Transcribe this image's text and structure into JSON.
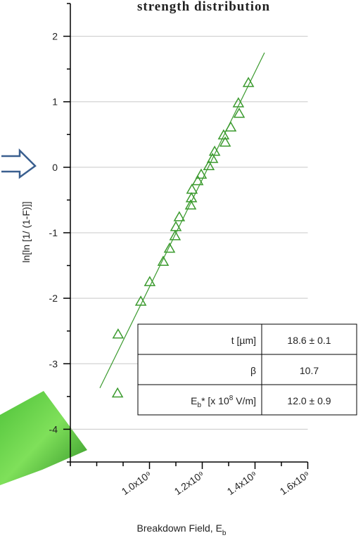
{
  "chart_data": {
    "type": "scatter",
    "title": "strength distribution",
    "x_label": "Breakdown Field, E",
    "x_label_sub": "b",
    "y_label": "ln[ln [1/ (1-F)]]",
    "xlim": [
      700000000,
      1600000000
    ],
    "ylim": [
      -4.5,
      2.5
    ],
    "xticks": [
      {
        "value": 1000000000,
        "label": "1.0x10⁹"
      },
      {
        "value": 1200000000,
        "label": "1.2x10⁹"
      },
      {
        "value": 1400000000,
        "label": "1.4x10⁹"
      },
      {
        "value": 1600000000,
        "label": "1.6x10⁹"
      }
    ],
    "x_minor_ticks": [
      700000000,
      800000000,
      900000000,
      1100000000,
      1300000000,
      1500000000
    ],
    "yticks": [
      -4,
      -3,
      -2,
      -1,
      0,
      1,
      2
    ],
    "y_minor_ticks": [
      -4.5,
      -3.5,
      -2.5,
      -1.5,
      -0.5,
      0.5,
      1.5,
      2.5
    ],
    "grid": true,
    "color": "#3b9a2e",
    "x": [
      881000000,
      879000000,
      967000000,
      1001000000,
      1052000000,
      1076000000,
      1097000000,
      1100000000,
      1113000000,
      1156000000,
      1159000000,
      1161000000,
      1183000000,
      1196000000,
      1225000000,
      1239000000,
      1247000000,
      1287000000,
      1281000000,
      1308000000,
      1340000000,
      1337000000,
      1375000000
    ],
    "values": [
      -2.55,
      -3.45,
      -2.05,
      -1.75,
      -1.44,
      -1.24,
      -1.05,
      -0.91,
      -0.76,
      -0.58,
      -0.47,
      -0.34,
      -0.21,
      -0.11,
      0.02,
      0.13,
      0.24,
      0.38,
      0.49,
      0.61,
      0.82,
      0.98,
      1.29
    ],
    "fit": {
      "x": [
        812000000,
        1436000000
      ],
      "values": [
        -3.37,
        1.75
      ]
    },
    "table": {
      "rows": [
        {
          "label": [
            "t [µm]"
          ],
          "value": "18.6 ± 0.1"
        },
        {
          "label": [
            "β"
          ],
          "value": "10.7"
        },
        {
          "label": [
            "E",
            "b",
            "* [x 10",
            "8",
            " V/m]"
          ],
          "value": "12.0 ± 0.9"
        }
      ]
    }
  }
}
